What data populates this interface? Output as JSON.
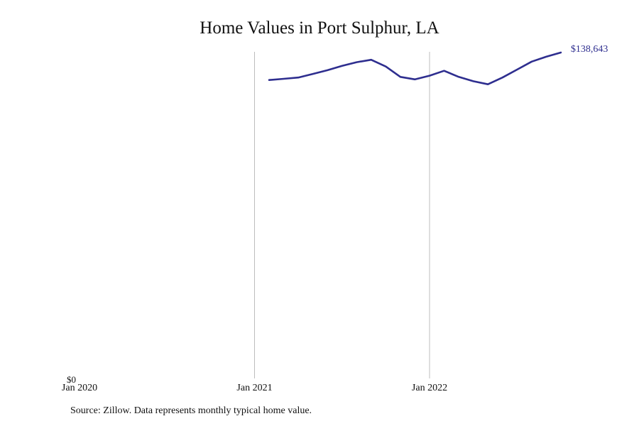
{
  "title": "Home Values in Port Sulphur, LA",
  "source_note": "Source: Zillow. Data represents monthly typical home value.",
  "end_value_label": "$138,643",
  "y_zero_label": "$0",
  "colors": {
    "line": "#2e2e8f",
    "grid": "#bdbdbd",
    "text": "#111111"
  },
  "chart_data": {
    "type": "line",
    "title": "Home Values in Port Sulphur, LA",
    "x_ticks": [
      "Jan 2020",
      "Jan 2021",
      "Jan 2022"
    ],
    "ylim": [
      0,
      138643
    ],
    "y_ticks": [
      "$0"
    ],
    "grid": "vertical lines at Jan 2021 and Jan 2022",
    "series": [
      {
        "values": [
          {
            "x": "2021-02",
            "y": 126960
          },
          {
            "x": "2021-03",
            "y": 127480
          },
          {
            "x": "2021-04",
            "y": 128000
          },
          {
            "x": "2021-05",
            "y": 129560
          },
          {
            "x": "2021-06",
            "y": 131120
          },
          {
            "x": "2021-07",
            "y": 132960
          },
          {
            "x": "2021-08",
            "y": 134520
          },
          {
            "x": "2021-09",
            "y": 135560
          },
          {
            "x": "2021-10",
            "y": 132700
          },
          {
            "x": "2021-11",
            "y": 128270
          },
          {
            "x": "2021-12",
            "y": 127230
          },
          {
            "x": "2022-01",
            "y": 128790
          },
          {
            "x": "2022-02",
            "y": 130880
          },
          {
            "x": "2022-03",
            "y": 128270
          },
          {
            "x": "2022-04",
            "y": 126440
          },
          {
            "x": "2022-05",
            "y": 125140
          },
          {
            "x": "2022-06",
            "y": 128000
          },
          {
            "x": "2022-07",
            "y": 131380
          },
          {
            "x": "2022-08",
            "y": 134780
          },
          {
            "x": "2022-09",
            "y": 136870
          },
          {
            "x": "2022-10",
            "y": 138643
          }
        ]
      }
    ]
  }
}
